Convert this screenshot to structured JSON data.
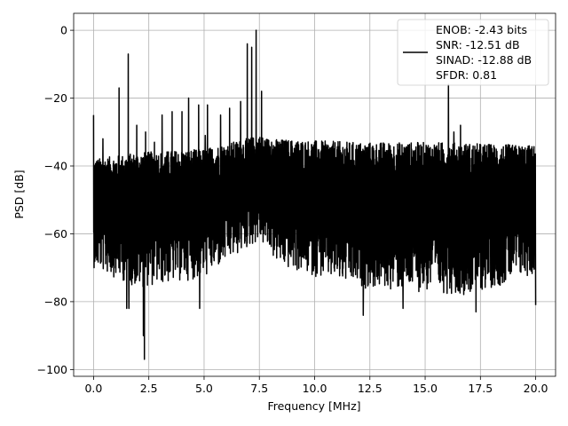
{
  "chart_data": {
    "type": "line",
    "xlabel": "Frequency [MHz]",
    "ylabel": "PSD [dB]",
    "xlim": [
      -0.9,
      20.9
    ],
    "ylim": [
      -102,
      5
    ],
    "xticks": [
      0.0,
      2.5,
      5.0,
      7.5,
      10.0,
      12.5,
      15.0,
      17.5,
      20.0
    ],
    "xtick_labels": [
      "0.0",
      "2.5",
      "5.0",
      "7.5",
      "10.0",
      "12.5",
      "15.0",
      "17.5",
      "20.0"
    ],
    "yticks": [
      0,
      -20,
      -40,
      -60,
      -80,
      -100
    ],
    "ytick_labels": [
      "0",
      "−20",
      "−40",
      "−60",
      "−80",
      "−100"
    ],
    "grid": true,
    "legend_position": "top-right",
    "series": [
      {
        "name": "ENOB: -2.43 bits\nSNR: -12.51 dB\nSINAD: -12.88 dB\nSFDR: 0.81",
        "legend_lines": [
          "ENOB: -2.43 bits",
          "SNR: -12.51 dB",
          "SINAD: -12.88 dB",
          "SFDR: 0.81"
        ],
        "color": "#000000",
        "noise_floor": {
          "x_range": [
            0.0,
            20.0
          ],
          "upper_envelope_db": [
            [
              0.0,
              -38
            ],
            [
              2.0,
              -36
            ],
            [
              5.0,
              -35
            ],
            [
              7.5,
              -31
            ],
            [
              8.0,
              -32
            ],
            [
              12.0,
              -33
            ],
            [
              16.0,
              -33
            ],
            [
              20.0,
              -34
            ]
          ],
          "lower_envelope_db": [
            [
              0.0,
              -70
            ],
            [
              2.0,
              -76
            ],
            [
              5.0,
              -73
            ],
            [
              7.5,
              -62
            ],
            [
              8.5,
              -70
            ],
            [
              12.0,
              -76
            ],
            [
              17.0,
              -78
            ],
            [
              20.0,
              -72
            ]
          ],
          "dips": [
            [
              2.3,
              -97
            ],
            [
              2.25,
              -90
            ],
            [
              1.5,
              -82
            ],
            [
              1.6,
              -82
            ],
            [
              3.1,
              -79
            ],
            [
              4.0,
              -82
            ],
            [
              4.8,
              -82
            ],
            [
              12.2,
              -84
            ],
            [
              14.0,
              -82
            ],
            [
              17.3,
              -83
            ],
            [
              20.0,
              -81
            ]
          ]
        },
        "spurs": [
          {
            "x": 0.0,
            "y": -25
          },
          {
            "x": 0.42,
            "y": -32
          },
          {
            "x": 1.15,
            "y": -17
          },
          {
            "x": 1.57,
            "y": -7
          },
          {
            "x": 1.95,
            "y": -28
          },
          {
            "x": 2.35,
            "y": -30
          },
          {
            "x": 2.75,
            "y": -33
          },
          {
            "x": 3.1,
            "y": -25
          },
          {
            "x": 3.55,
            "y": -24
          },
          {
            "x": 4.0,
            "y": -24
          },
          {
            "x": 4.3,
            "y": -20
          },
          {
            "x": 4.75,
            "y": -22
          },
          {
            "x": 5.05,
            "y": -31
          },
          {
            "x": 5.15,
            "y": -22
          },
          {
            "x": 5.75,
            "y": -25
          },
          {
            "x": 6.15,
            "y": -23
          },
          {
            "x": 6.65,
            "y": -21
          },
          {
            "x": 6.95,
            "y": -4
          },
          {
            "x": 7.15,
            "y": -5
          },
          {
            "x": 7.35,
            "y": 0
          },
          {
            "x": 7.6,
            "y": -18
          },
          {
            "x": 8.05,
            "y": -33
          },
          {
            "x": 16.05,
            "y": -16
          },
          {
            "x": 16.3,
            "y": -30
          },
          {
            "x": 16.6,
            "y": -28
          }
        ]
      }
    ]
  }
}
